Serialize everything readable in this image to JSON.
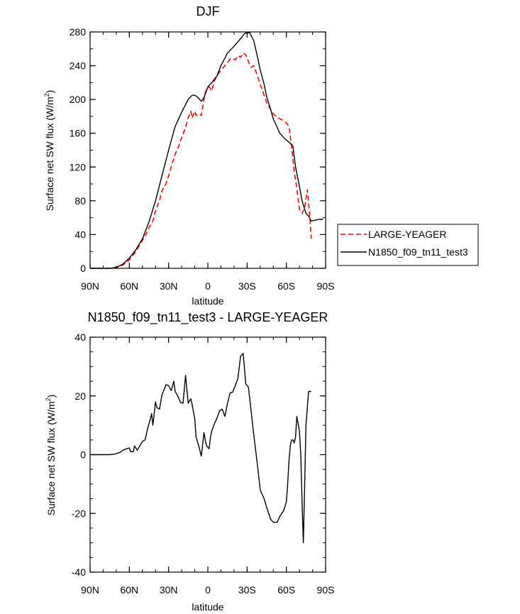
{
  "chart_data": [
    {
      "type": "line",
      "title": "DJF",
      "xlabel": "latitude",
      "ylabel": "Surface net SW flux (W/m",
      "ylabel_sup": "2",
      "ylabel_end": ")",
      "xlim": [
        90,
        -90
      ],
      "ylim": [
        0,
        280
      ],
      "xticks": [
        90,
        60,
        30,
        0,
        -30,
        -60,
        -90
      ],
      "xtick_labels": [
        "90N",
        "60N",
        "30N",
        "0",
        "30S",
        "60S",
        "90S"
      ],
      "yticks": [
        0,
        40,
        80,
        120,
        160,
        200,
        240,
        280
      ],
      "ytick_labels": [
        "0",
        "40",
        "80",
        "120",
        "160",
        "200",
        "240",
        "280"
      ],
      "legend_position": "right",
      "series": [
        {
          "name": "LARGE-YEAGER",
          "color": "#ff0000",
          "dash": "dashed",
          "x": [
            90,
            80,
            75,
            70,
            67,
            63,
            60,
            55,
            52,
            48,
            45,
            42,
            40,
            37,
            35,
            32,
            30,
            27,
            25,
            22,
            20,
            17,
            15,
            13,
            12,
            10,
            9,
            7,
            5,
            3,
            2,
            1,
            -1,
            -3,
            -5,
            -7,
            -10,
            -13,
            -15,
            -17,
            -19,
            -21,
            -23,
            -25,
            -27,
            -29,
            -31,
            -33,
            -35,
            -37,
            -40,
            -43,
            -45,
            -48,
            -50,
            -53,
            -55,
            -58,
            -60,
            -62,
            -64,
            -66,
            -68,
            -70,
            -72,
            -74,
            -76,
            -78,
            -79
          ],
          "y": [
            0,
            0,
            0,
            1,
            2,
            6,
            10,
            20,
            28,
            38,
            48,
            56,
            68,
            80,
            92,
            100,
            110,
            125,
            135,
            146,
            155,
            167,
            178,
            186,
            178,
            186,
            181,
            183,
            181,
            200,
            208,
            212,
            215,
            210,
            222,
            228,
            235,
            240,
            244,
            248,
            248,
            247,
            252,
            250,
            255,
            253,
            245,
            238,
            240,
            232,
            218,
            205,
            196,
            188,
            183,
            179,
            177,
            175,
            172,
            168,
            145,
            115,
            95,
            70,
            65,
            72,
            93,
            60,
            35
          ]
        },
        {
          "name": "N1850_f09_tn11_test3",
          "color": "#000000",
          "dash": "solid",
          "x": [
            90,
            80,
            75,
            70,
            65,
            60,
            55,
            50,
            45,
            40,
            35,
            30,
            25,
            20,
            15,
            12,
            10,
            8,
            5,
            3,
            0,
            -3,
            -7,
            -10,
            -15,
            -20,
            -25,
            -28,
            -30,
            -32,
            -35,
            -38,
            -40,
            -43,
            -45,
            -48,
            -50,
            -53,
            -55,
            -58,
            -60,
            -63,
            -65,
            -67,
            -70,
            -72,
            -75,
            -77,
            -79,
            -82,
            -85,
            -88
          ],
          "y": [
            0,
            0,
            0,
            1,
            5,
            12,
            22,
            35,
            55,
            80,
            110,
            140,
            168,
            185,
            200,
            205,
            205,
            203,
            198,
            202,
            215,
            220,
            228,
            240,
            255,
            263,
            272,
            278,
            279,
            279,
            270,
            250,
            235,
            218,
            203,
            188,
            177,
            167,
            160,
            155,
            152,
            148,
            145,
            120,
            97,
            80,
            65,
            62,
            56,
            57,
            58,
            58
          ]
        }
      ]
    },
    {
      "type": "line",
      "title": "N1850_f09_tn11_test3 - LARGE-YEAGER",
      "xlabel": "latitude",
      "ylabel": "Surface net SW flux (W/m",
      "ylabel_sup": "2",
      "ylabel_end": ")",
      "xlim": [
        90,
        -90
      ],
      "ylim": [
        -40,
        40
      ],
      "xticks": [
        90,
        60,
        30,
        0,
        -30,
        -60,
        -90
      ],
      "xtick_labels": [
        "90N",
        "60N",
        "30N",
        "0",
        "30S",
        "60S",
        "90S"
      ],
      "yticks": [
        -40,
        -20,
        0,
        20,
        40
      ],
      "ytick_labels": [
        "-40",
        "-20",
        "0",
        "20",
        "40"
      ],
      "series": [
        {
          "color": "#000000",
          "dash": "solid",
          "x": [
            90,
            80,
            75,
            71,
            69,
            67,
            65,
            62,
            60,
            59,
            57,
            56,
            54,
            52,
            50,
            48,
            46,
            44,
            43,
            42,
            40,
            39,
            37,
            35,
            34,
            32,
            30,
            28,
            26,
            25,
            23,
            21,
            19,
            17,
            15,
            13,
            12,
            10,
            9,
            7,
            5,
            3,
            2,
            1,
            -1,
            -2,
            -3,
            -5,
            -7,
            -9,
            -11,
            -13,
            -15,
            -17,
            -19,
            -21,
            -23,
            -25,
            -27,
            -29,
            -31,
            -33,
            -35,
            -38,
            -40,
            -43,
            -45,
            -48,
            -50,
            -53,
            -55,
            -58,
            -60,
            -61,
            -62,
            -63,
            -64,
            -65,
            -66,
            -67,
            -68,
            -70,
            -71,
            -72,
            -73,
            -74,
            -75,
            -77,
            -79
          ],
          "y": [
            0,
            0,
            0,
            0.2,
            0.5,
            0.8,
            1.5,
            2,
            2.3,
            1,
            1,
            3,
            1.5,
            3,
            4.5,
            5,
            9,
            12,
            14,
            10,
            18,
            16,
            15.5,
            20.5,
            21.5,
            23.8,
            23.5,
            21.8,
            25,
            21.5,
            20,
            17.8,
            17.5,
            27,
            17.5,
            19,
            17,
            12,
            6,
            3,
            -0.5,
            7.5,
            5,
            3,
            2,
            6,
            8,
            10.5,
            12.5,
            15,
            15.5,
            13,
            17.5,
            21,
            21.3,
            23.5,
            26,
            33.5,
            34.5,
            24,
            23,
            15,
            7,
            -4,
            -12,
            -15,
            -18,
            -22,
            -23,
            -23,
            -21,
            -19,
            -16,
            -10,
            -2,
            3,
            5,
            5,
            4,
            6,
            13,
            8,
            0,
            -16,
            -30,
            -10,
            10,
            21.5,
            21.5
          ]
        }
      ]
    }
  ]
}
